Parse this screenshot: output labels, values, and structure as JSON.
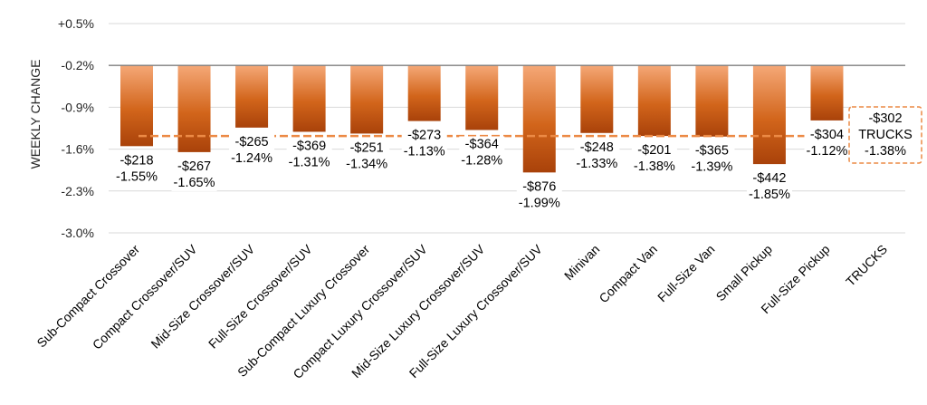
{
  "chart_data": {
    "type": "bar",
    "ylabel": "WEEKLY CHANGE",
    "ylim": [
      -3.0,
      0.5
    ],
    "yticks": [
      "+0.5%",
      "-0.2%",
      "-0.9%",
      "-1.6%",
      "-2.3%",
      "-3.0%"
    ],
    "ytick_values": [
      0.5,
      -0.2,
      -0.9,
      -1.6,
      -2.3,
      -3.0
    ],
    "baseline": -0.2,
    "categories": [
      "Sub-Compact Crossover",
      "Compact Crossover/SUV",
      "Mid-Size Crossover/SUV",
      "Full-Size Crossover/SUV",
      "Sub-Compact Luxury Crossover",
      "Compact Luxury Crossover/SUV",
      "Mid-Size Luxury Crossover/SUV",
      "Full-Size Luxury Crossover/SUV",
      "Minivan",
      "Compact Van",
      "Full-Size Van",
      "Small Pickup",
      "Full-Size Pickup",
      "TRUCKS"
    ],
    "values": [
      -1.55,
      -1.65,
      -1.24,
      -1.31,
      -1.34,
      -1.13,
      -1.28,
      -1.99,
      -1.33,
      -1.38,
      -1.39,
      -1.85,
      -1.12,
      null
    ],
    "dollar_labels": [
      "-$218",
      "-$267",
      "-$265",
      "-$369",
      "-$251",
      "-$273",
      "-$364",
      "-$876",
      "-$248",
      "-$201",
      "-$365",
      "-$442",
      "-$304",
      ""
    ],
    "pct_labels": [
      "-1.55%",
      "-1.65%",
      "-1.24%",
      "-1.31%",
      "-1.34%",
      "-1.13%",
      "-1.28%",
      "-1.99%",
      "-1.33%",
      "-1.38%",
      "-1.39%",
      "-1.85%",
      "-1.12%",
      ""
    ],
    "total": {
      "category": "TRUCKS",
      "value": -1.38,
      "dollar": "-$302",
      "name": "TRUCKS",
      "pct": "-1.38%"
    },
    "reference_line_value": -1.38,
    "colors": {
      "bar_top": "#f5a877",
      "bar_bottom": "#a9420a",
      "bar_mid": "#d2651b",
      "reference_line": "#ec8a45",
      "baseline": "#7f7f7f",
      "gridline": "#d9d9d9"
    },
    "grid": true,
    "legend": "none"
  }
}
